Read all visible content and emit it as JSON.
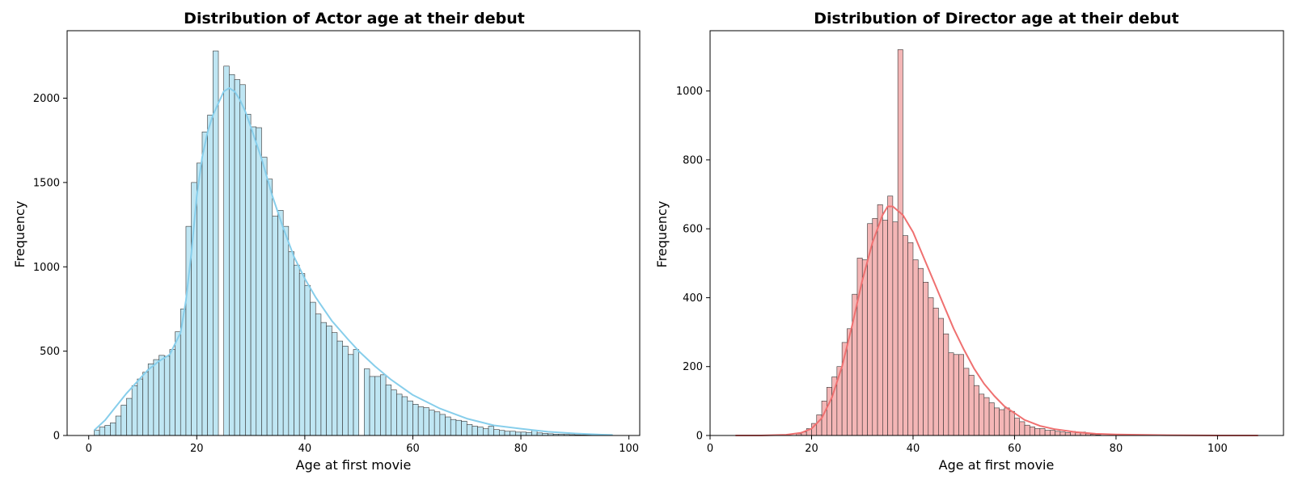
{
  "chart_data": [
    {
      "type": "bar",
      "title": "Distribution of Actor age at their debut",
      "xlabel": "Age at first movie",
      "ylabel": "Frequency",
      "xlim": [
        -4,
        102
      ],
      "ylim": [
        0,
        2400
      ],
      "xticks": [
        0,
        20,
        40,
        60,
        80,
        100
      ],
      "yticks": [
        0,
        500,
        1000,
        1500,
        2000
      ],
      "bar_color": "#bfe6f3",
      "edge_color": "#333333",
      "kde_color": "#87ceeb",
      "bins": {
        "start": 1,
        "width": 1
      },
      "values": [
        30,
        50,
        60,
        75,
        115,
        180,
        220,
        295,
        335,
        375,
        425,
        450,
        475,
        470,
        510,
        615,
        750,
        1240,
        1500,
        1615,
        1800,
        1900,
        2280,
        0,
        2190,
        2140,
        2110,
        2080,
        1905,
        1830,
        1825,
        1650,
        1520,
        1300,
        1335,
        1240,
        1090,
        1010,
        960,
        890,
        790,
        720,
        670,
        650,
        610,
        560,
        530,
        480,
        510,
        0,
        395,
        350,
        350,
        360,
        300,
        270,
        245,
        230,
        205,
        185,
        170,
        165,
        150,
        140,
        125,
        110,
        95,
        90,
        85,
        65,
        55,
        50,
        40,
        55,
        35,
        30,
        25,
        25,
        20,
        20,
        18,
        30,
        15,
        12,
        10,
        8,
        7,
        6,
        5,
        4,
        3,
        3,
        2,
        2,
        1,
        1
      ],
      "kde": {
        "x": [
          1,
          3,
          5,
          7,
          9,
          11,
          13,
          15,
          17,
          18,
          19,
          20,
          21,
          22,
          23,
          24,
          25,
          26,
          27,
          28,
          29,
          30,
          32,
          34,
          36,
          38,
          40,
          42,
          45,
          48,
          50,
          53,
          56,
          60,
          65,
          70,
          75,
          80,
          85,
          90,
          95,
          97
        ],
        "y": [
          30,
          90,
          170,
          250,
          320,
          390,
          440,
          480,
          610,
          800,
          1080,
          1420,
          1650,
          1800,
          1900,
          1970,
          2040,
          2060,
          2040,
          1990,
          1920,
          1830,
          1640,
          1420,
          1230,
          1060,
          930,
          820,
          680,
          570,
          500,
          410,
          330,
          240,
          160,
          100,
          60,
          40,
          22,
          12,
          5,
          3
        ]
      }
    },
    {
      "type": "bar",
      "title": "Distribution of Director age at their debut",
      "xlabel": "Age at first movie",
      "ylabel": "Frequency",
      "xlim": [
        0,
        113
      ],
      "ylim": [
        0,
        1175
      ],
      "xticks": [
        0,
        20,
        40,
        60,
        80,
        100
      ],
      "yticks": [
        0,
        200,
        400,
        600,
        800,
        1000
      ],
      "bar_color": "#f4b6b6",
      "edge_color": "#333333",
      "kde_color": "#ef7070",
      "bins": {
        "start": 17,
        "width": 1
      },
      "values": [
        5,
        10,
        20,
        35,
        60,
        100,
        140,
        170,
        200,
        270,
        310,
        410,
        515,
        510,
        615,
        630,
        670,
        625,
        695,
        620,
        1120,
        580,
        560,
        510,
        485,
        445,
        400,
        370,
        340,
        295,
        240,
        235,
        235,
        195,
        175,
        145,
        120,
        110,
        95,
        80,
        75,
        80,
        70,
        50,
        40,
        30,
        25,
        20,
        20,
        15,
        15,
        12,
        10,
        8,
        12,
        8,
        10,
        5,
        3,
        2
      ],
      "kde": {
        "x": [
          5,
          10,
          15,
          18,
          20,
          22,
          24,
          26,
          28,
          30,
          32,
          34,
          35,
          36,
          38,
          40,
          42,
          44,
          46,
          48,
          50,
          52,
          54,
          56,
          58,
          60,
          62,
          65,
          68,
          72,
          76,
          80,
          90,
          100,
          108
        ],
        "y": [
          0,
          0,
          2,
          8,
          20,
          50,
          110,
          200,
          320,
          450,
          560,
          640,
          665,
          665,
          640,
          590,
          520,
          450,
          380,
          310,
          250,
          195,
          150,
          115,
          85,
          65,
          45,
          28,
          18,
          10,
          5,
          3,
          1,
          0,
          0
        ]
      }
    }
  ]
}
